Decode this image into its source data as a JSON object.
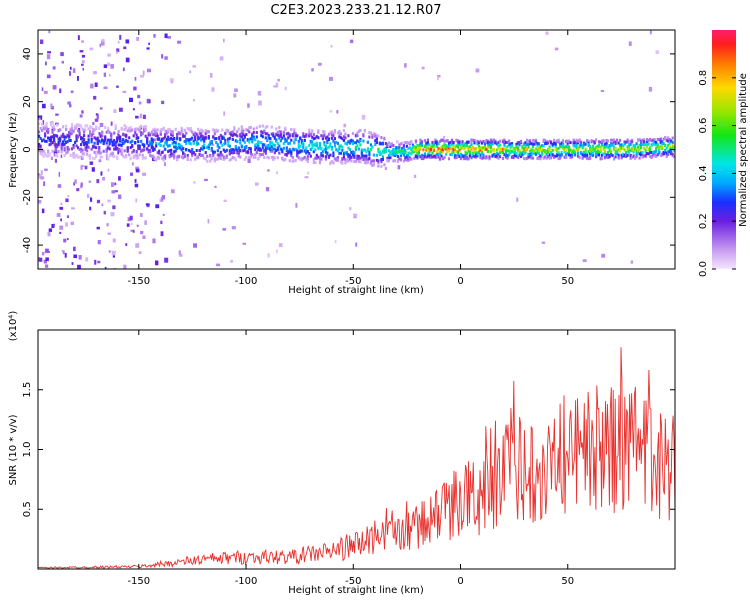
{
  "title": "C2E3.2023.233.21.12.R07",
  "chart_data": [
    {
      "type": "heatmap",
      "xlabel": "Height of straight line (km)",
      "ylabel": "Frequency (Hz)",
      "xlim": [
        -197,
        100
      ],
      "ylim": [
        -50,
        50
      ],
      "x_ticks": [
        -150,
        -100,
        -50,
        0,
        50
      ],
      "y_ticks": [
        -40,
        -20,
        0,
        20,
        40
      ],
      "colorbar": {
        "label": "Normalized spectral amplitude",
        "ticks": [
          "0.0",
          "0.2",
          "0.4",
          "0.6",
          "0.8"
        ],
        "range": [
          0,
          1
        ]
      },
      "ridge": {
        "x": [
          -190,
          -170,
          -150,
          -140,
          -130,
          -110,
          -95,
          -80,
          -60,
          -45,
          -35,
          -25,
          -20,
          0,
          25,
          50,
          75,
          95
        ],
        "freq": [
          4,
          3,
          3,
          2,
          2,
          2,
          3,
          2,
          1,
          1,
          -1,
          -1,
          0,
          0,
          0,
          0,
          0,
          1
        ],
        "amplitude": [
          0.3,
          0.3,
          0.35,
          0.4,
          0.45,
          0.45,
          0.45,
          0.5,
          0.5,
          0.55,
          0.55,
          0.6,
          0.9,
          0.95,
          0.8,
          0.75,
          0.8,
          0.7
        ]
      }
    },
    {
      "type": "line",
      "xlabel": "Height of straight line (km)",
      "ylabel": "SNR (10 * v/v)",
      "y_multiplier": "(x10⁴)",
      "xlim": [
        -197,
        100
      ],
      "ylim": [
        0,
        2.0
      ],
      "x_ticks": [
        -150,
        -100,
        -50,
        0,
        50
      ],
      "y_ticks": [
        "0.5",
        "1.0",
        "1.5"
      ],
      "series": [
        {
          "color": "#e8302c",
          "x": [
            -197,
            -150,
            -135,
            -120,
            -100,
            -80,
            -60,
            -45,
            -35,
            -30,
            -20,
            -10,
            0,
            10,
            20,
            30,
            38,
            45,
            55,
            70,
            85,
            100
          ],
          "y": [
            0.01,
            0.02,
            0.05,
            0.08,
            0.1,
            0.1,
            0.15,
            0.22,
            0.35,
            0.3,
            0.35,
            0.45,
            0.6,
            0.6,
            0.8,
            0.8,
            0.9,
            0.9,
            1.0,
            1.0,
            0.95,
            0.85
          ]
        }
      ]
    }
  ]
}
